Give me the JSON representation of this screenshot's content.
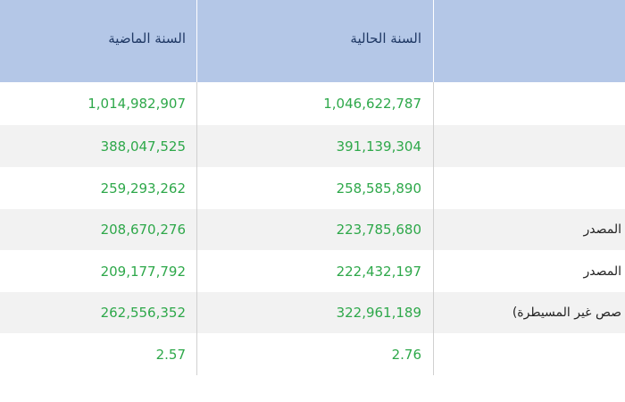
{
  "table": {
    "header": [
      "السنة الماضية",
      "السنة الحالية"
    ],
    "rows": [
      {
        "label": null,
        "previous": "1,014,982,907",
        "current": "1,046,622,787"
      },
      {
        "label": null,
        "previous": "388,047,525",
        "current": "391,139,304"
      },
      {
        "label": null,
        "previous": "259,293,262",
        "current": "258,585,890"
      },
      {
        "label": "المصدر",
        "previous": "208,670,276",
        "current": "223,785,680"
      },
      {
        "label": "المصدر",
        "previous": "209,177,792",
        "current": "222,432,197"
      },
      {
        "label": "صص غير المسيطرة)",
        "previous": "262,556,352",
        "current": "322,961,189"
      },
      {
        "label": null,
        "previous": "2.57",
        "current": "2.76"
      }
    ]
  }
}
